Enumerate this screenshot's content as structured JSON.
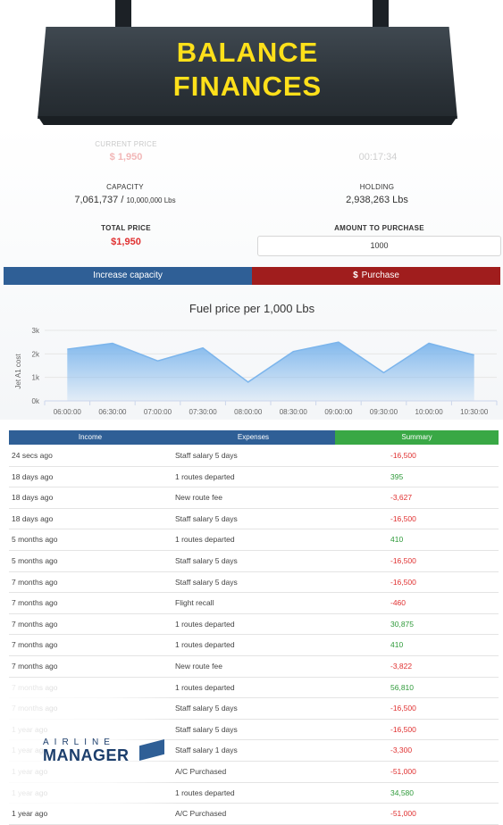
{
  "sign": {
    "title_line1": "BALANCE",
    "title_line2": "FINANCES"
  },
  "fuel": {
    "current_price_label": "CURRENT PRICE",
    "current_price_value": "$ 1,950",
    "timer_value": "00:17:34",
    "capacity_label": "CAPACITY",
    "capacity_value": "7,061,737",
    "capacity_sep": "/",
    "capacity_max": "10,000,000 Lbs",
    "holding_label": "HOLDING",
    "holding_value": "2,938,263 Lbs",
    "total_price_label": "TOTAL PRICE",
    "total_price_value": "$1,950",
    "amount_label": "AMOUNT TO PURCHASE",
    "amount_value": "1000",
    "increase_button": "Increase capacity",
    "purchase_button": "Purchase",
    "purchase_icon": "dollar-icon"
  },
  "chart_data": {
    "type": "area",
    "title": "Fuel price per 1,000 Lbs",
    "ylabel": "Jet A1 cost",
    "ylim": [
      0,
      3000
    ],
    "y_ticks": [
      "0k",
      "1k",
      "2k",
      "3k"
    ],
    "x": [
      "06:00:00",
      "06:30:00",
      "07:00:00",
      "07:30:00",
      "08:00:00",
      "08:30:00",
      "09:00:00",
      "09:30:00",
      "10:00:00",
      "10:30:00"
    ],
    "values": [
      2200,
      2450,
      1700,
      2250,
      800,
      2100,
      2500,
      1200,
      2450,
      1950
    ],
    "grid": true,
    "color": "#7cb5ec"
  },
  "table": {
    "headers": [
      "Income",
      "Expenses",
      "Summary"
    ],
    "rows": [
      {
        "time": "24 secs ago",
        "desc": "Staff salary 5 days",
        "amount": "-16,500",
        "neg": true
      },
      {
        "time": "18 days ago",
        "desc": "1 routes departed",
        "amount": "395",
        "neg": false
      },
      {
        "time": "18 days ago",
        "desc": "New route fee",
        "amount": "-3,627",
        "neg": true
      },
      {
        "time": "18 days ago",
        "desc": "Staff salary 5 days",
        "amount": "-16,500",
        "neg": true
      },
      {
        "time": "5 months ago",
        "desc": "1 routes departed",
        "amount": "410",
        "neg": false
      },
      {
        "time": "5 months ago",
        "desc": "Staff salary 5 days",
        "amount": "-16,500",
        "neg": true
      },
      {
        "time": "7 months ago",
        "desc": "Staff salary 5 days",
        "amount": "-16,500",
        "neg": true
      },
      {
        "time": "7 months ago",
        "desc": "Flight recall",
        "amount": "-460",
        "neg": true
      },
      {
        "time": "7 months ago",
        "desc": "1 routes departed",
        "amount": "30,875",
        "neg": false
      },
      {
        "time": "7 months ago",
        "desc": "1 routes departed",
        "amount": "410",
        "neg": false
      },
      {
        "time": "7 months ago",
        "desc": "New route fee",
        "amount": "-3,822",
        "neg": true
      },
      {
        "time": "7 months ago",
        "desc": "1 routes departed",
        "amount": "56,810",
        "neg": false
      },
      {
        "time": "7 months ago",
        "desc": "Staff salary 5 days",
        "amount": "-16,500",
        "neg": true
      },
      {
        "time": "1 year ago",
        "desc": "Staff salary 5 days",
        "amount": "-16,500",
        "neg": true
      },
      {
        "time": "1 year ago",
        "desc": "Staff salary 1 days",
        "amount": "-3,300",
        "neg": true
      },
      {
        "time": "1 year ago",
        "desc": "A/C Purchased",
        "amount": "-51,000",
        "neg": true
      },
      {
        "time": "1 year ago",
        "desc": "1 routes departed",
        "amount": "34,580",
        "neg": false
      },
      {
        "time": "1 year ago",
        "desc": "A/C Purchased",
        "amount": "-51,000",
        "neg": true
      }
    ]
  },
  "logo": {
    "line1": "AIRLINE",
    "line2": "MANAGER"
  }
}
